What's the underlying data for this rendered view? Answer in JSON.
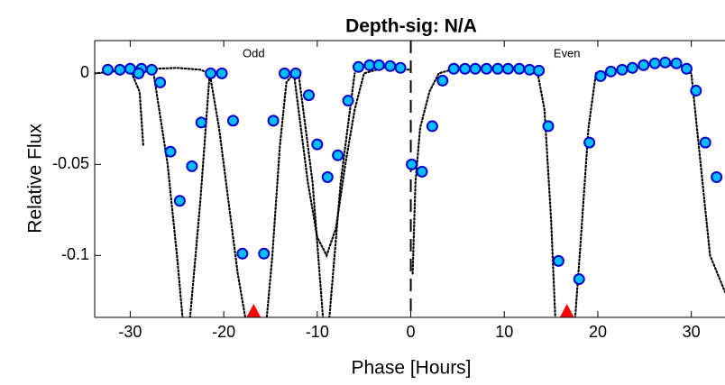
{
  "chart_data": {
    "type": "scatter",
    "title": "Depth-sig: N/A",
    "xlabel": "Phase [Hours]",
    "ylabel": "Relative Flux",
    "xlim": [
      -33.8,
      33.6
    ],
    "ylim": [
      -0.134,
      0.018
    ],
    "xticks": [
      -30,
      -20,
      -10,
      0,
      10,
      20,
      30
    ],
    "yticks": [
      -0.1,
      -0.05,
      0
    ],
    "divider": 0,
    "annotations": [
      "Odd",
      "Even"
    ],
    "series": [
      {
        "style": "dots",
        "color": "#000000",
        "x": [
          -33.8,
          -30,
          -25,
          -22.5,
          -21.5,
          -20.5,
          -19.5,
          -18.5,
          -17.5,
          -15.5,
          -14.8,
          -14,
          -13.3,
          -12.5,
          -12,
          -11,
          -10,
          -9,
          -8,
          -7,
          -6,
          -5,
          -3,
          -0.2,
          null,
          0.2,
          0.5,
          1,
          2,
          3,
          5,
          13.5,
          14.3,
          15,
          15.5,
          17.5,
          18.2,
          19,
          19.8,
          22,
          26,
          29,
          30,
          31,
          32,
          33.6
        ],
        "values": [
          0,
          0.002,
          0.003,
          0.002,
          0,
          -0.03,
          -0.07,
          -0.11,
          -0.14,
          -0.14,
          -0.1,
          -0.04,
          -0.005,
          0,
          -0.02,
          -0.06,
          -0.09,
          -0.1,
          -0.085,
          -0.05,
          -0.02,
          0,
          0.003,
          0.002,
          null,
          -0.11,
          -0.06,
          -0.03,
          -0.01,
          0,
          0.003,
          0.002,
          -0.02,
          -0.08,
          -0.14,
          -0.14,
          -0.09,
          -0.03,
          0,
          0.002,
          0.005,
          0.004,
          0,
          -0.05,
          -0.1,
          -0.12
        ]
      },
      {
        "style": "dots",
        "color": "#000000",
        "x": [
          -30,
          -29,
          -28.6,
          null,
          -27.5,
          -26,
          -25,
          -24.3,
          null,
          -23.7,
          -22.5,
          -21.5,
          null,
          -12,
          -10.5,
          -9.3,
          null,
          -8.8,
          -7.5,
          -6
        ],
        "values": [
          0.002,
          -0.01,
          -0.04,
          null,
          0,
          -0.05,
          -0.1,
          -0.14,
          null,
          -0.14,
          -0.07,
          0,
          null,
          0,
          -0.06,
          -0.14,
          null,
          -0.14,
          -0.06,
          0
        ]
      },
      {
        "style": "circles",
        "color": "#00bfff",
        "edge": "#0000cd",
        "x": [
          -32.4,
          -31.1,
          -30.0,
          -28.8,
          -27.7,
          -29.1,
          -26.8,
          -25.7,
          -24.7,
          -23.4,
          -22.4,
          -21.4,
          -20.2,
          -19.0,
          -18.0,
          -15.7,
          -14.7,
          -13.5,
          -12.3,
          -10.9,
          -10.0,
          -8.9,
          -7.8,
          -6.7,
          -5.6,
          -4.4,
          -3.4,
          -2.2,
          -1.1,
          0.1,
          1.2,
          2.3,
          3.4,
          4.6,
          5.8,
          6.9,
          8.1,
          9.3,
          10.4,
          11.6,
          12.7,
          13.7,
          14.7,
          15.8,
          18.0,
          19.1,
          20.3,
          21.4,
          22.6,
          23.7,
          24.9,
          26.1,
          27.2,
          28.4,
          29.5,
          30.5,
          31.5,
          32.7
        ],
        "values": [
          0.002,
          0.002,
          0.0025,
          0.0025,
          0.002,
          0,
          -0.005,
          -0.043,
          -0.07,
          -0.051,
          -0.027,
          0,
          0,
          -0.026,
          -0.099,
          -0.099,
          -0.026,
          0,
          0,
          -0.012,
          -0.039,
          -0.057,
          -0.045,
          -0.015,
          0.0035,
          0.0045,
          0.0045,
          0.004,
          0.003,
          -0.05,
          -0.054,
          -0.029,
          -0.004,
          0.0025,
          0.0025,
          0.0025,
          0.0025,
          0.0025,
          0.0025,
          0.0025,
          0.002,
          0.0015,
          -0.029,
          -0.103,
          -0.113,
          -0.038,
          -0.0015,
          0.001,
          0.002,
          0.003,
          0.0045,
          0.0055,
          0.006,
          0.0055,
          0.0025,
          -0.0095,
          -0.038,
          -0.057
        ]
      },
      {
        "style": "triangles",
        "color": "#ff0000",
        "x": [
          -16.8,
          16.7
        ],
        "values": [
          -0.134,
          -0.134
        ]
      }
    ]
  }
}
